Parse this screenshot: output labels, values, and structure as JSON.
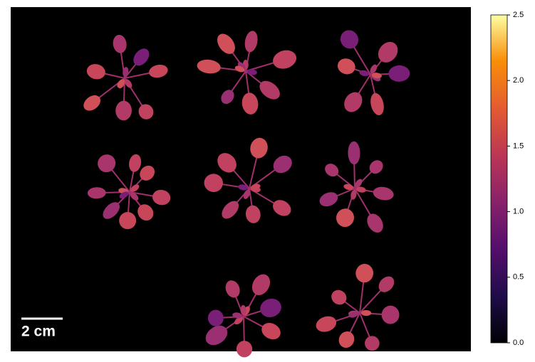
{
  "scale_bar": {
    "label": "2 cm"
  },
  "colorbar": {
    "lim": [
      0,
      2.5
    ],
    "ticks": [
      {
        "value": 0,
        "label": "0.0"
      },
      {
        "value": 0.5,
        "label": "0.5"
      },
      {
        "value": 1,
        "label": "1.0"
      },
      {
        "value": 1.5,
        "label": "1.5"
      },
      {
        "value": 2,
        "label": "2.0"
      },
      {
        "value": 2.5,
        "label": "2.5"
      }
    ]
  }
}
